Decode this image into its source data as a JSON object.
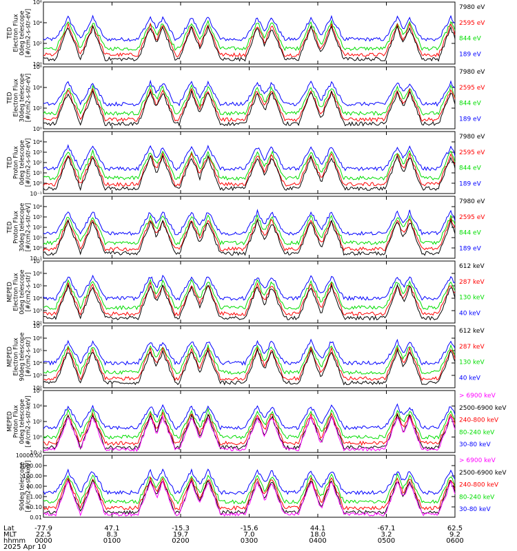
{
  "chart_data": [
    {
      "type": "line",
      "ylabel": [
        "TED",
        "Electron Flux",
        "0deg telescope",
        "[#/cm2-s-str-eV]"
      ],
      "ylim": [
        1,
        1000000
      ],
      "yscale": "log",
      "ytick_labels": [
        "10^0",
        "10^2",
        "10^4",
        "10^6"
      ],
      "series": [
        {
          "name": "7980 eV",
          "color": "#000000",
          "baseline": [
            1,
            2,
            2,
            1,
            1,
            1,
            1,
            1,
            1,
            1,
            1,
            1,
            1,
            1,
            1,
            1,
            1,
            1,
            1,
            1
          ]
        },
        {
          "name": "2595 eV",
          "color": "#ff0000",
          "baseline": [
            2,
            6,
            6,
            2,
            2,
            2,
            2,
            2,
            2,
            2,
            2,
            2,
            2,
            2,
            2,
            2,
            2,
            2,
            2,
            2
          ]
        },
        {
          "name": "844 eV",
          "color": "#00dd00",
          "baseline": [
            3,
            30,
            30,
            3,
            3,
            3,
            3,
            3,
            3,
            3,
            3,
            3,
            3,
            3,
            3,
            3,
            3,
            3,
            3,
            3
          ]
        },
        {
          "name": "189 eV",
          "color": "#0000ff",
          "baseline": [
            30,
            100,
            100,
            300,
            300,
            300,
            300,
            300,
            300,
            300,
            300,
            300,
            300,
            300,
            300,
            300,
            300,
            300,
            300,
            300
          ]
        }
      ]
    },
    {
      "type": "line",
      "ylabel": [
        "TED",
        "Electron Flux",
        "30deg telescope",
        "[#/cm2-s-str-eV]"
      ],
      "ylim": [
        1,
        1000000
      ],
      "yscale": "log",
      "ytick_labels": [
        "10^0",
        "10^2",
        "10^4",
        "10^6"
      ],
      "series": [
        {
          "name": "7980 eV",
          "color": "#000000"
        },
        {
          "name": "2595 eV",
          "color": "#ff0000"
        },
        {
          "name": "844 eV",
          "color": "#00dd00"
        },
        {
          "name": "189 eV",
          "color": "#0000ff"
        }
      ]
    },
    {
      "type": "line",
      "ylabel": [
        "TED",
        "Proton Flux",
        "0deg telescope",
        "[#/cm2-s-str-eV]"
      ],
      "ylim": [
        0.1,
        100000
      ],
      "yscale": "log",
      "ytick_labels": [
        "10^-1",
        "10^0",
        "10^1",
        "10^2",
        "10^3",
        "10^4"
      ],
      "series": [
        {
          "name": "7980 eV",
          "color": "#000000"
        },
        {
          "name": "2595 eV",
          "color": "#ff0000"
        },
        {
          "name": "844 eV",
          "color": "#00dd00"
        },
        {
          "name": "189 eV",
          "color": "#0000ff"
        }
      ]
    },
    {
      "type": "line",
      "ylabel": [
        "TED",
        "Proton Flux",
        "30deg telescope",
        "[#/cm2-s-str-eV]"
      ],
      "ylim": [
        0.1,
        100000
      ],
      "yscale": "log",
      "ytick_labels": [
        "10^-1",
        "10^0",
        "10^1",
        "10^2",
        "10^3",
        "10^4"
      ],
      "series": [
        {
          "name": "7980 eV",
          "color": "#000000"
        },
        {
          "name": "2595 eV",
          "color": "#ff0000"
        },
        {
          "name": "844 eV",
          "color": "#00dd00"
        },
        {
          "name": "189 eV",
          "color": "#0000ff"
        }
      ]
    },
    {
      "type": "line",
      "ylabel": [
        "MEPED",
        "Electron Flux",
        "0deg telescope",
        "[#/cm2-s-str]"
      ],
      "ylim": [
        100,
        10000000
      ],
      "yscale": "log",
      "ytick_labels": [
        "10^2",
        "10^3",
        "10^4",
        "10^5",
        "10^6",
        "10^7"
      ],
      "series": [
        {
          "name": "612 keV",
          "color": "#000000"
        },
        {
          "name": "287 keV",
          "color": "#ff0000"
        },
        {
          "name": "130 keV",
          "color": "#00dd00"
        },
        {
          "name": "40 keV",
          "color": "#0000ff"
        }
      ]
    },
    {
      "type": "line",
      "ylabel": [
        "MEPED",
        "Electron Flux",
        "90deg telescope",
        "[#/cm2-s-str]"
      ],
      "ylim": [
        100,
        10000000
      ],
      "yscale": "log",
      "ytick_labels": [
        "10^2",
        "10^3",
        "10^4",
        "10^5",
        "10^6",
        "10^7"
      ],
      "series": [
        {
          "name": "612 keV",
          "color": "#000000"
        },
        {
          "name": "287 keV",
          "color": "#ff0000"
        },
        {
          "name": "130 keV",
          "color": "#00dd00"
        },
        {
          "name": "40 keV",
          "color": "#0000ff"
        }
      ]
    },
    {
      "type": "line",
      "ylabel": [
        "MEPED",
        "Proton Flux",
        "0deg telescope",
        "[#/cm2-s-str-keV]"
      ],
      "ylim": [
        0.01,
        1000000
      ],
      "yscale": "log",
      "ytick_labels": [
        "10^-2",
        "10^0",
        "10^2",
        "10^4",
        "10^6"
      ],
      "series": [
        {
          "name": "> 6900 keV",
          "color": "#ff00ff"
        },
        {
          "name": "2500-6900 keV",
          "color": "#000000"
        },
        {
          "name": "240-800 keV",
          "color": "#ff0000"
        },
        {
          "name": "80-240 keV",
          "color": "#00dd00"
        },
        {
          "name": "30-80 keV",
          "color": "#0000ff"
        }
      ]
    },
    {
      "type": "line",
      "ylabel": [
        "",
        "",
        "90deg telescope",
        "[#/cm2-s-str-keV]"
      ],
      "ylim": [
        0.01,
        10000
      ],
      "yscale": "log",
      "ytick_labels": [
        "0.01",
        "0.10",
        "1.00",
        "10.00",
        "100.00",
        "1000.00",
        "10000.00"
      ],
      "series": [
        {
          "name": "> 6900 keV",
          "color": "#ff00ff"
        },
        {
          "name": "2500-6900 keV",
          "color": "#000000"
        },
        {
          "name": "240-800 keV",
          "color": "#ff0000"
        },
        {
          "name": "80-240 keV",
          "color": "#00dd00"
        },
        {
          "name": "30-80 keV",
          "color": "#0000ff"
        }
      ]
    }
  ],
  "x_axis": {
    "row_labels": [
      "Lat",
      "MLT",
      "hhmm"
    ],
    "date": "2025 Apr 10",
    "ticks": [
      {
        "lat": "-77.9",
        "mlt": "22.5",
        "hhmm": "0000"
      },
      {
        "lat": "47.1",
        "mlt": "8.3",
        "hhmm": "0100"
      },
      {
        "lat": "-15.3",
        "mlt": "19.7",
        "hhmm": "0200"
      },
      {
        "lat": "-15.6",
        "mlt": "7.0",
        "hhmm": "0300"
      },
      {
        "lat": "44.1",
        "mlt": "18.0",
        "hhmm": "0400"
      },
      {
        "lat": "-67.1",
        "mlt": "3.2",
        "hhmm": "0500"
      },
      {
        "lat": "62.5",
        "mlt": "9.2",
        "hhmm": "0600"
      }
    ]
  }
}
